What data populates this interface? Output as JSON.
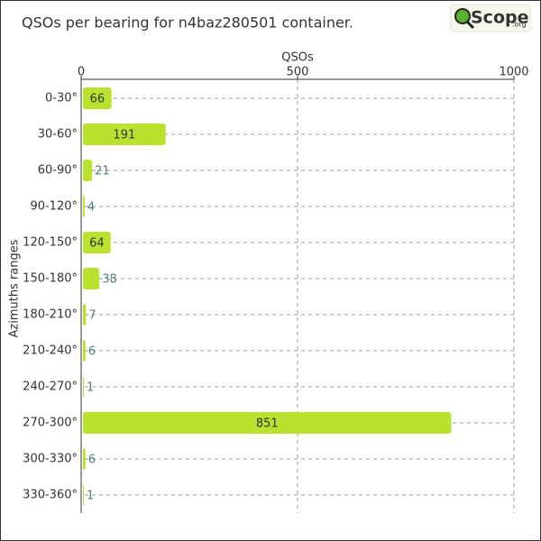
{
  "chart_data": {
    "type": "bar",
    "orientation": "horizontal",
    "title": "QSOs per bearing for n4baz280501 container.",
    "logo": {
      "main": "Scope",
      "suffix": ".org"
    },
    "x_label": "QSOs",
    "y_label": "Azimuths ranges",
    "categories": [
      "0-30°",
      "30-60°",
      "60-90°",
      "90-120°",
      "120-150°",
      "150-180°",
      "180-210°",
      "210-240°",
      "240-270°",
      "270-300°",
      "300-330°",
      "330-360°"
    ],
    "values": [
      66,
      191,
      21,
      4,
      64,
      38,
      7,
      6,
      1,
      851,
      6,
      1
    ],
    "color": "#b8e22e",
    "xlim": [
      0,
      1000
    ],
    "xticks": [
      0,
      500,
      1000
    ],
    "grid": true
  }
}
